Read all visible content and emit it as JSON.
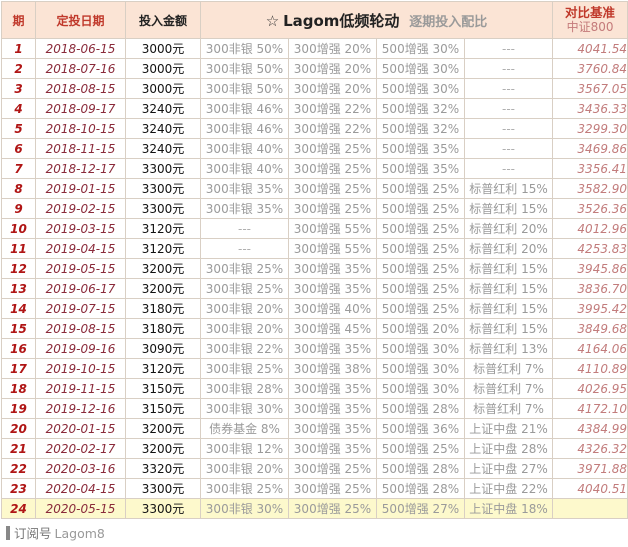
{
  "header": {
    "period": "期",
    "date": "定投日期",
    "amount": "投入金额",
    "star": "☆",
    "title": "Lagom低频轮动",
    "subtitle": "逐期投入配比",
    "bench_line1": "对比基准",
    "bench_line2": "中证800"
  },
  "colors": {
    "header_bg": "#fbe4d5",
    "period_num": "#b01515",
    "date": "#8a2a3a",
    "benchmark": "#c27c7c",
    "last_row_bg": "#fdf9cc"
  },
  "rows": [
    {
      "n": "1",
      "date": "2018-06-15",
      "amount": "3000元",
      "a1": "300非银 50%",
      "a2": "300增强 20%",
      "a3": "500增强 30%",
      "a4": "---",
      "bench": "4041.54"
    },
    {
      "n": "2",
      "date": "2018-07-16",
      "amount": "3000元",
      "a1": "300非银 50%",
      "a2": "300增强 20%",
      "a3": "500增强 30%",
      "a4": "---",
      "bench": "3760.84"
    },
    {
      "n": "3",
      "date": "2018-08-15",
      "amount": "3000元",
      "a1": "300非银 50%",
      "a2": "300增强 20%",
      "a3": "500增强 30%",
      "a4": "---",
      "bench": "3567.05"
    },
    {
      "n": "4",
      "date": "2018-09-17",
      "amount": "3240元",
      "a1": "300非银 46%",
      "a2": "300增强 22%",
      "a3": "500增强 32%",
      "a4": "---",
      "bench": "3436.33"
    },
    {
      "n": "5",
      "date": "2018-10-15",
      "amount": "3240元",
      "a1": "300非银 46%",
      "a2": "300增强 22%",
      "a3": "500增强 32%",
      "a4": "---",
      "bench": "3299.30"
    },
    {
      "n": "6",
      "date": "2018-11-15",
      "amount": "3240元",
      "a1": "300非银 40%",
      "a2": "300增强 25%",
      "a3": "500增强 35%",
      "a4": "---",
      "bench": "3469.86"
    },
    {
      "n": "7",
      "date": "2018-12-17",
      "amount": "3300元",
      "a1": "300非银 40%",
      "a2": "300增强 25%",
      "a3": "500增强 35%",
      "a4": "---",
      "bench": "3356.41"
    },
    {
      "n": "8",
      "date": "2019-01-15",
      "amount": "3300元",
      "a1": "300非银 35%",
      "a2": "300增强 25%",
      "a3": "500增强 25%",
      "a4": "标普红利 15%",
      "bench": "3582.90"
    },
    {
      "n": "9",
      "date": "2019-02-15",
      "amount": "3300元",
      "a1": "300非银 35%",
      "a2": "300增强 25%",
      "a3": "500增强 25%",
      "a4": "标普红利 15%",
      "bench": "3526.36"
    },
    {
      "n": "10",
      "date": "2019-03-15",
      "amount": "3120元",
      "a1": "---",
      "a2": "300增强 55%",
      "a3": "500增强 25%",
      "a4": "标普红利 20%",
      "bench": "4012.96"
    },
    {
      "n": "11",
      "date": "2019-04-15",
      "amount": "3120元",
      "a1": "---",
      "a2": "300增强 55%",
      "a3": "500增强 25%",
      "a4": "标普红利 20%",
      "bench": "4253.83"
    },
    {
      "n": "12",
      "date": "2019-05-15",
      "amount": "3200元",
      "a1": "300非银 25%",
      "a2": "300增强 35%",
      "a3": "500增强 25%",
      "a4": "标普红利 15%",
      "bench": "3945.86"
    },
    {
      "n": "13",
      "date": "2019-06-17",
      "amount": "3200元",
      "a1": "300非银 25%",
      "a2": "300增强 35%",
      "a3": "500增强 25%",
      "a4": "标普红利 15%",
      "bench": "3836.70"
    },
    {
      "n": "14",
      "date": "2019-07-15",
      "amount": "3180元",
      "a1": "300非银 20%",
      "a2": "300增强 40%",
      "a3": "500增强 25%",
      "a4": "标普红利 15%",
      "bench": "3995.42"
    },
    {
      "n": "15",
      "date": "2019-08-15",
      "amount": "3180元",
      "a1": "300非银 20%",
      "a2": "300增强 45%",
      "a3": "500增强 20%",
      "a4": "标普红利 15%",
      "bench": "3849.68"
    },
    {
      "n": "16",
      "date": "2019-09-16",
      "amount": "3090元",
      "a1": "300非银 22%",
      "a2": "300增强 35%",
      "a3": "500增强 30%",
      "a4": "标普红利 13%",
      "bench": "4164.06"
    },
    {
      "n": "17",
      "date": "2019-10-15",
      "amount": "3120元",
      "a1": "300非银 25%",
      "a2": "300增强 38%",
      "a3": "500增强 30%",
      "a4": "标普红利 7%",
      "bench": "4110.89"
    },
    {
      "n": "18",
      "date": "2019-11-15",
      "amount": "3150元",
      "a1": "300非银 28%",
      "a2": "300增强 35%",
      "a3": "500增强 30%",
      "a4": "标普红利 7%",
      "bench": "4026.95"
    },
    {
      "n": "19",
      "date": "2019-12-16",
      "amount": "3150元",
      "a1": "300非银 30%",
      "a2": "300增强 35%",
      "a3": "500增强 28%",
      "a4": "标普红利 7%",
      "bench": "4172.10"
    },
    {
      "n": "20",
      "date": "2020-01-15",
      "amount": "3200元",
      "a1": "债券基金 8%",
      "a2": "300增强 35%",
      "a3": "500增强 36%",
      "a4": "上证中盘 21%",
      "bench": "4384.99"
    },
    {
      "n": "21",
      "date": "2020-02-17",
      "amount": "3200元",
      "a1": "300非银 12%",
      "a2": "300增强 35%",
      "a3": "500增强 25%",
      "a4": "上证中盘 28%",
      "bench": "4326.32"
    },
    {
      "n": "22",
      "date": "2020-03-16",
      "amount": "3320元",
      "a1": "300非银 20%",
      "a2": "300增强 25%",
      "a3": "500增强 28%",
      "a4": "上证中盘 27%",
      "bench": "3971.88"
    },
    {
      "n": "23",
      "date": "2020-04-15",
      "amount": "3300元",
      "a1": "300非银 25%",
      "a2": "300增强 25%",
      "a3": "500增强 28%",
      "a4": "上证中盘 22%",
      "bench": "4040.51"
    },
    {
      "n": "24",
      "date": "2020-05-15",
      "amount": "3300元",
      "a1": "300非银 30%",
      "a2": "300增强 25%",
      "a3": "500增强 27%",
      "a4": "上证中盘 18%",
      "bench": ""
    }
  ],
  "footer": {
    "label": "订阅号",
    "account": "Lagom8"
  }
}
